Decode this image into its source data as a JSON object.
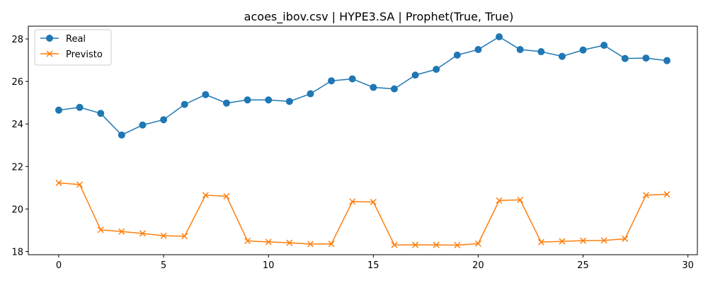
{
  "chart_data": {
    "type": "line",
    "title": "acoes_ibov.csv | HYPE3.SA | Prophet(True, True)",
    "xlabel": "",
    "ylabel": "",
    "xlim": [
      -1.45,
      30.45
    ],
    "ylim": [
      17.85,
      28.6
    ],
    "xticks": [
      0,
      5,
      10,
      15,
      20,
      25,
      30
    ],
    "yticks": [
      18,
      20,
      22,
      24,
      26,
      28
    ],
    "grid": false,
    "legend_position": "top-left",
    "x": [
      0,
      1,
      2,
      3,
      4,
      5,
      6,
      7,
      8,
      9,
      10,
      11,
      12,
      13,
      14,
      15,
      16,
      17,
      18,
      19,
      20,
      21,
      22,
      23,
      24,
      25,
      26,
      27,
      28,
      29
    ],
    "series": [
      {
        "name": "Real",
        "color": "#1f77b4",
        "marker": "circle",
        "values": [
          24.65,
          24.78,
          24.5,
          23.48,
          23.95,
          24.2,
          24.92,
          25.38,
          24.98,
          25.13,
          25.13,
          25.06,
          25.42,
          26.03,
          26.12,
          25.72,
          25.65,
          26.3,
          26.57,
          27.24,
          27.5,
          28.1,
          27.5,
          27.4,
          27.18,
          27.48,
          27.7,
          27.08,
          27.1,
          26.98
        ]
      },
      {
        "name": "Previsto",
        "color": "#ff7f0e",
        "marker": "x",
        "values": [
          21.23,
          21.15,
          19.02,
          18.94,
          18.85,
          18.74,
          18.72,
          20.65,
          20.6,
          18.5,
          18.45,
          18.41,
          18.35,
          18.36,
          20.35,
          20.33,
          18.31,
          18.31,
          18.31,
          18.3,
          18.37,
          20.4,
          20.43,
          18.44,
          18.48,
          18.51,
          18.52,
          18.6,
          20.65,
          20.69
        ]
      }
    ]
  }
}
